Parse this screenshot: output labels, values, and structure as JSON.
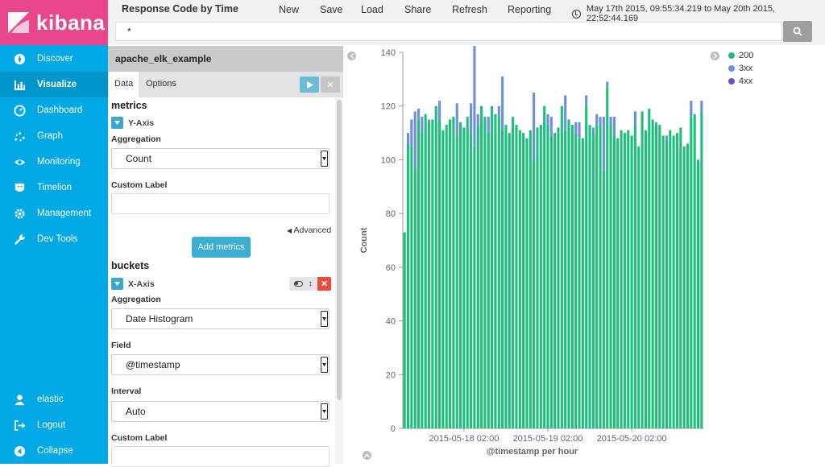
{
  "app": {
    "name": "kibana",
    "brand_color": "#e8488b",
    "nav_color": "#00a9e5"
  },
  "nav": {
    "items": [
      {
        "label": "Discover",
        "icon": "compass-icon"
      },
      {
        "label": "Visualize",
        "icon": "bar-chart-icon",
        "active": true
      },
      {
        "label": "Dashboard",
        "icon": "gauge-icon"
      },
      {
        "label": "Graph",
        "icon": "graph-icon"
      },
      {
        "label": "Monitoring",
        "icon": "eye-icon"
      },
      {
        "label": "Timelion",
        "icon": "timelion-icon"
      },
      {
        "label": "Management",
        "icon": "gear-icon"
      },
      {
        "label": "Dev Tools",
        "icon": "wrench-icon"
      }
    ],
    "bottom": [
      {
        "label": "elastic",
        "icon": "user-icon"
      },
      {
        "label": "Logout",
        "icon": "logout-icon"
      },
      {
        "label": "Collapse",
        "icon": "collapse-icon"
      }
    ]
  },
  "header": {
    "title": "Response Code by Time",
    "menu": [
      "New",
      "Save",
      "Load",
      "Share",
      "Refresh",
      "Reporting"
    ],
    "time_range": "May 17th 2015, 09:55:34.219 to May 20th 2015, 22:52:44.169",
    "query": "*"
  },
  "editor": {
    "index_pattern": "apache_elk_example",
    "tabs": [
      "Data",
      "Options"
    ],
    "metrics_heading": "metrics",
    "y_axis_label": "Y-Axis",
    "aggregation_label": "Aggregation",
    "metric_aggregation": "Count",
    "custom_label": "Custom Label",
    "advanced": "Advanced",
    "add_metrics": "Add metrics",
    "buckets_heading": "buckets",
    "x_axis_label": "X-Axis",
    "bucket_aggregation": "Date Histogram",
    "field_label": "Field",
    "field_value": "@timestamp",
    "interval_label": "Interval",
    "interval_value": "Auto"
  },
  "chart_data": {
    "type": "bar",
    "stacked": true,
    "ylabel": "Count",
    "xlabel": "@timestamp per hour",
    "ylim": [
      0,
      140
    ],
    "yticks": [
      0,
      20,
      40,
      60,
      80,
      100,
      120,
      140
    ],
    "xtick_labels": [
      "2015-05-18 02:00",
      "2015-05-19 02:00",
      "2015-05-20 02:00"
    ],
    "xtick_hour_index": [
      17,
      41,
      65
    ],
    "legend": [
      {
        "name": "200",
        "color": "#1dbf7a"
      },
      {
        "name": "3xx",
        "color": "#6e8fdd"
      },
      {
        "name": "4xx",
        "color": "#6f4fbf"
      }
    ],
    "series": [
      {
        "name": "200",
        "values": [
          73,
          106,
          105,
          97,
          115,
          110,
          117,
          114,
          115,
          120,
          115,
          111,
          113,
          115,
          116,
          109,
          114,
          112,
          116,
          110,
          105,
          113,
          120,
          116,
          110,
          120,
          117,
          116,
          111,
          113,
          110,
          116,
          113,
          111,
          110,
          108,
          111,
          100,
          112,
          113,
          120,
          113,
          109,
          110,
          112,
          120,
          111,
          115,
          113,
          110,
          108,
          108,
          120,
          113,
          110,
          113,
          113,
          96,
          127,
          113,
          109,
          108,
          111,
          110,
          111,
          109,
          113,
          105,
          118,
          111,
          119,
          115,
          113,
          113,
          109,
          107,
          111,
          109,
          110,
          112,
          105,
          106,
          116,
          117,
          100,
          118
        ]
      },
      {
        "name": "3xx",
        "values": [
          0,
          4,
          10,
          21,
          4,
          6,
          0,
          1,
          0,
          0,
          7,
          0,
          0,
          0,
          0,
          12,
          0,
          0,
          0,
          11,
          45,
          4,
          0,
          0,
          6,
          0,
          0,
          4,
          20,
          0,
          0,
          0,
          0,
          0,
          0,
          0,
          0,
          25,
          0,
          0,
          0,
          4,
          7,
          0,
          0,
          0,
          13,
          0,
          0,
          4,
          6,
          0,
          4,
          0,
          2,
          4,
          3,
          20,
          2,
          3,
          7,
          0,
          0,
          0,
          0,
          0,
          5,
          0,
          0,
          0,
          0,
          0,
          1,
          0,
          0,
          2,
          0,
          0,
          0,
          0,
          0,
          0,
          6,
          0,
          0,
          4
        ]
      },
      {
        "name": "4xx",
        "values": [
          0,
          0,
          0,
          0,
          0,
          0,
          0,
          0,
          0,
          0,
          0,
          0,
          0,
          0,
          0,
          0,
          0,
          0,
          0,
          0,
          0,
          0,
          0,
          0,
          0,
          0,
          0,
          0,
          0,
          0,
          0,
          0,
          0,
          0,
          0,
          0,
          0,
          0,
          0,
          0,
          0,
          0,
          0,
          0,
          0,
          0,
          0,
          0,
          0,
          0,
          0,
          0,
          0,
          0,
          0,
          0,
          0,
          0,
          0,
          0,
          0,
          0,
          0,
          0,
          0,
          0,
          0,
          0,
          0,
          0,
          0,
          0,
          0,
          0,
          0,
          0,
          0,
          0,
          0,
          0,
          0,
          0,
          0,
          0,
          0,
          0
        ]
      }
    ]
  }
}
